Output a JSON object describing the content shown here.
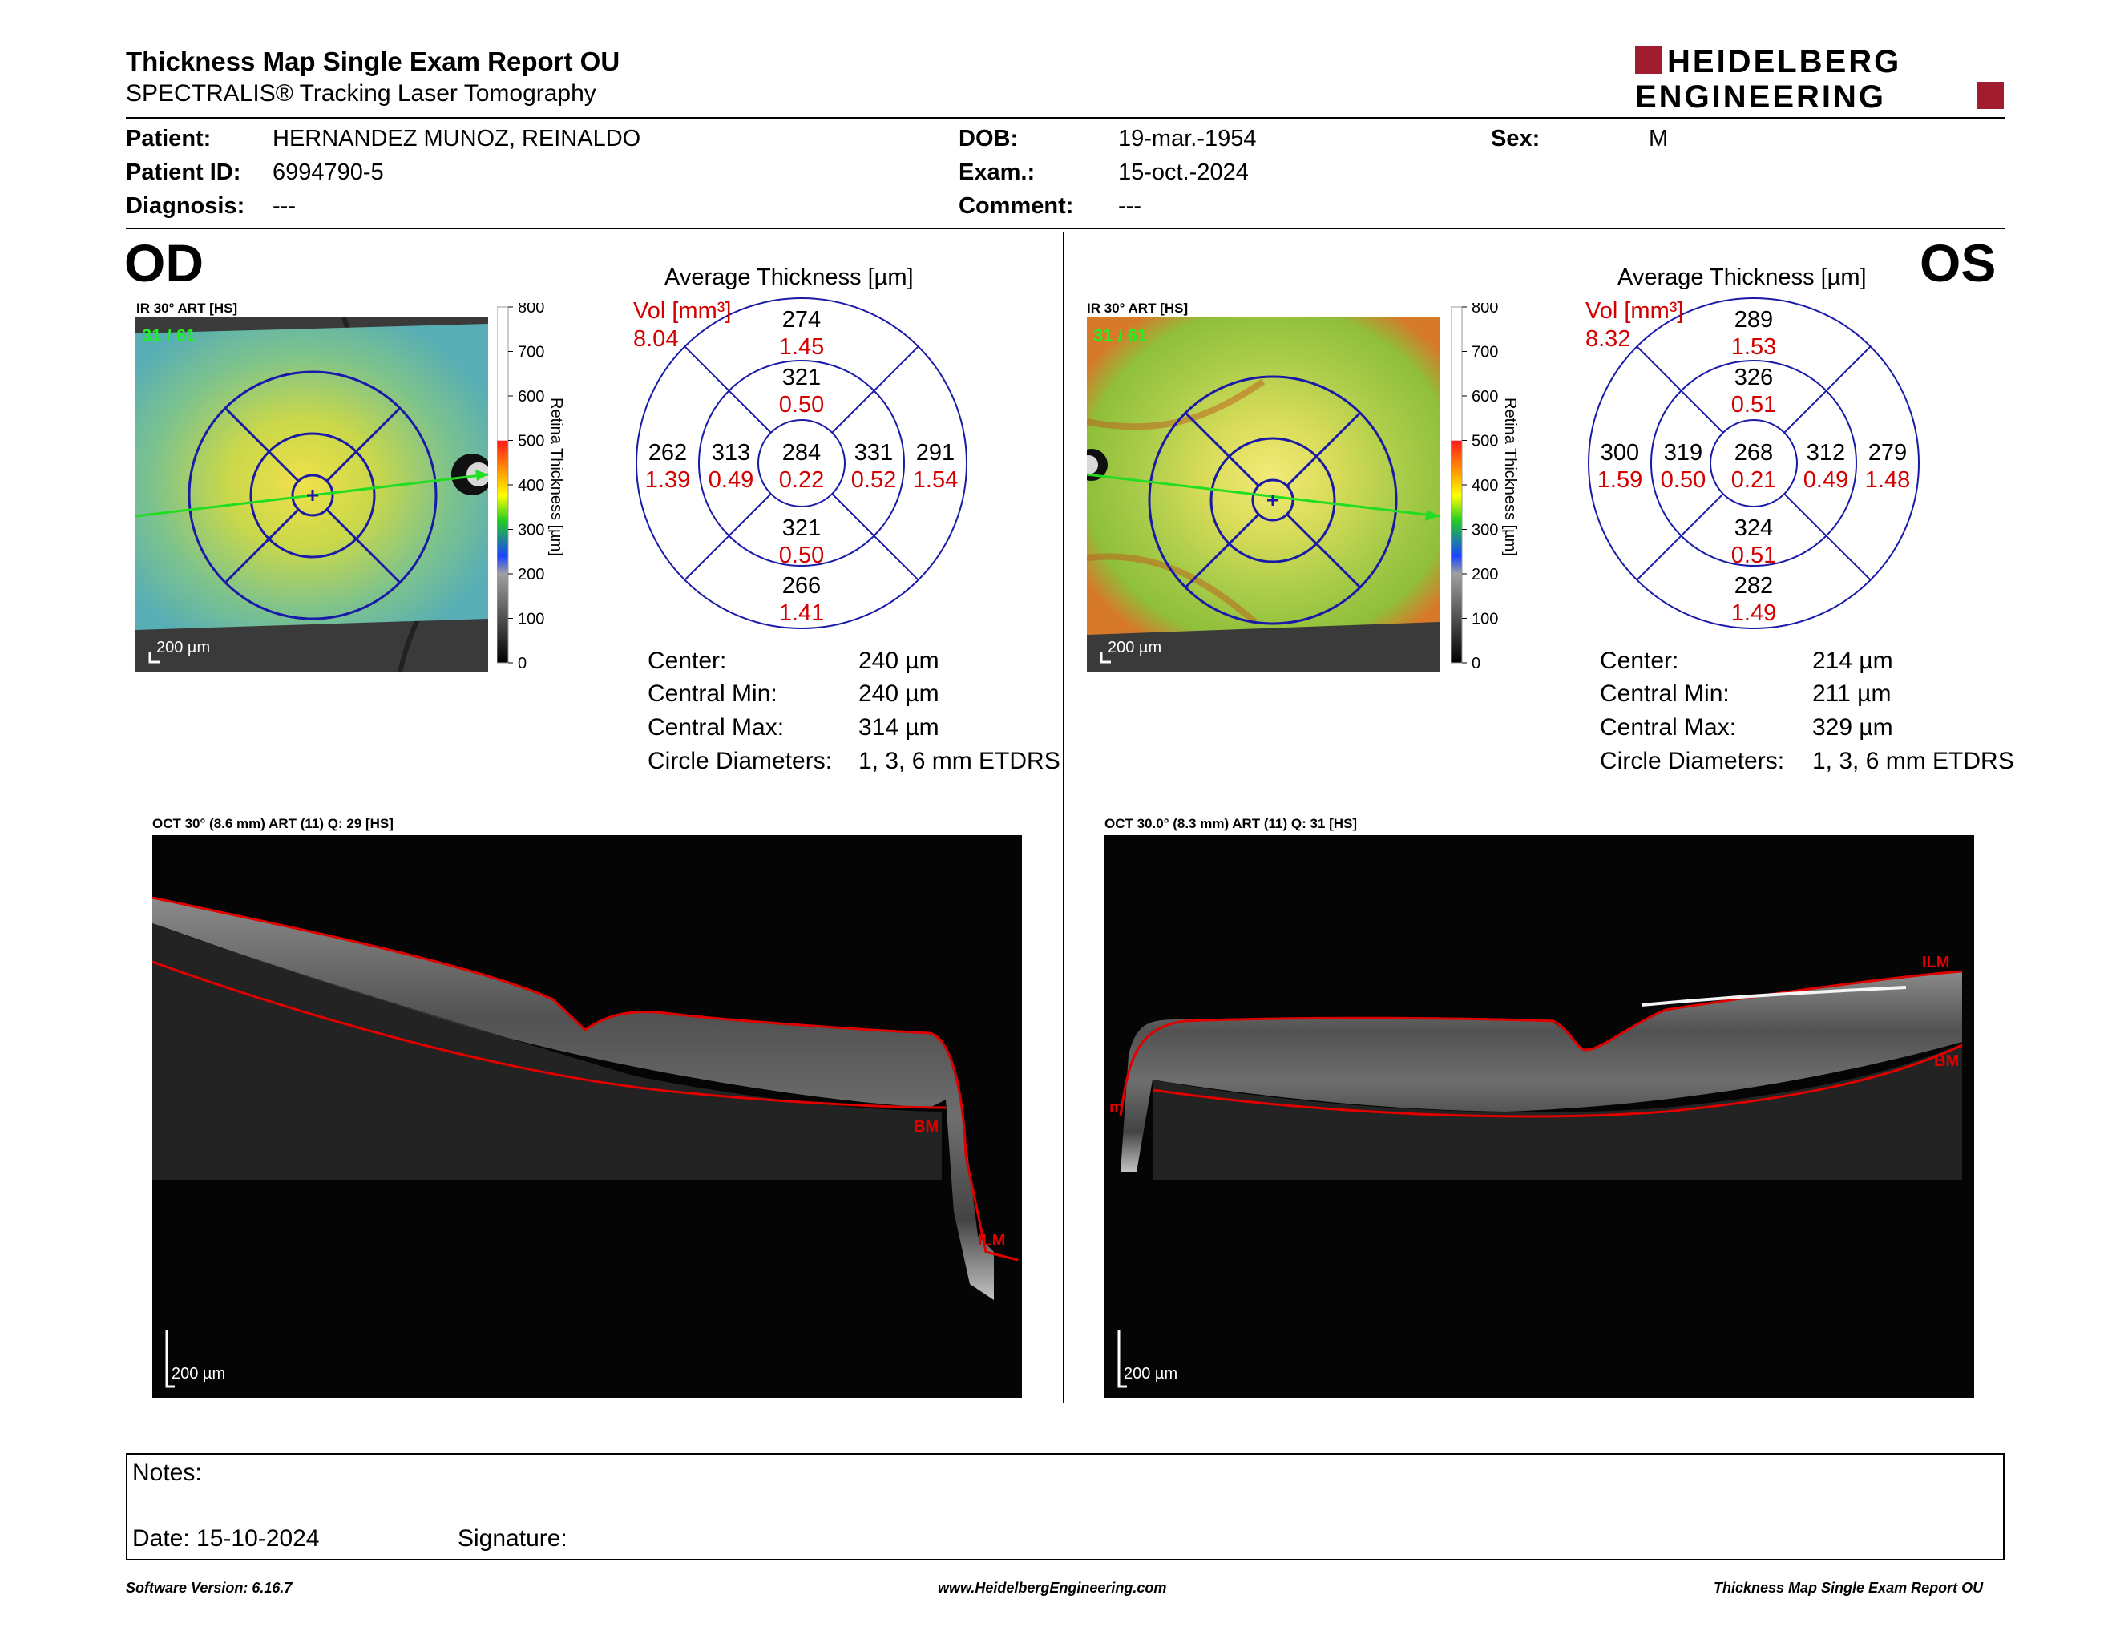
{
  "report": {
    "title": "Thickness Map Single Exam Report OU",
    "subtitle": "SPECTRALIS® Tracking Laser Tomography",
    "logo_line1": "HEIDELBERG",
    "logo_line2": "ENGINEERING"
  },
  "patient": {
    "patient_label": "Patient:",
    "patient_value": "HERNANDEZ MUNOZ, REINALDO",
    "id_label": "Patient ID:",
    "id_value": "6994790-5",
    "diagnosis_label": "Diagnosis:",
    "diagnosis_value": "---",
    "dob_label": "DOB:",
    "dob_value": "19-mar.-1954",
    "exam_label": "Exam.:",
    "exam_value": "15-oct.-2024",
    "comment_label": "Comment:",
    "comment_value": "---",
    "sex_label": "Sex:",
    "sex_value": "M"
  },
  "colors": {
    "accent_red": "#a01c2e",
    "ring_blue": "#1a1aa8",
    "vol_red": "#d40000",
    "scan_line_green": "#22dd22"
  },
  "od": {
    "eye_label": "OD",
    "ir_label": "IR 30° ART [HS]",
    "scan_counter": "31 / 61",
    "scale_label": "200 µm",
    "avg_title": "Average Thickness [µm]",
    "vol_label": "Vol [mm³]",
    "vol_total": "8.04",
    "sectors": {
      "center_t": "284",
      "center_v": "0.22",
      "inner_sup_t": "321",
      "inner_sup_v": "0.50",
      "inner_inf_t": "321",
      "inner_inf_v": "0.50",
      "inner_left_t": "313",
      "inner_left_v": "0.49",
      "inner_right_t": "331",
      "inner_right_v": "0.52",
      "outer_sup_t": "274",
      "outer_sup_v": "1.45",
      "outer_inf_t": "266",
      "outer_inf_v": "1.41",
      "outer_left_t": "262",
      "outer_left_v": "1.39",
      "outer_right_t": "291",
      "outer_right_v": "1.54"
    },
    "center_label": "Center:",
    "center_value": "240 µm",
    "cmin_label": "Central Min:",
    "cmin_value": "240 µm",
    "cmax_label": "Central Max:",
    "cmax_value": "314 µm",
    "diam_label": "Circle Diameters:",
    "diam_value": "1, 3, 6 mm ETDRS",
    "oct_label": "OCT 30° (8.6 mm) ART (11) Q: 29 [HS]",
    "oct_scale": "200 µm",
    "bm_label": "BM",
    "ilm_label": "ILM"
  },
  "os": {
    "eye_label": "OS",
    "ir_label": "IR 30° ART [HS]",
    "scan_counter": "31 / 61",
    "scale_label": "200 µm",
    "avg_title": "Average Thickness [µm]",
    "vol_label": "Vol [mm³]",
    "vol_total": "8.32",
    "sectors": {
      "center_t": "268",
      "center_v": "0.21",
      "inner_sup_t": "326",
      "inner_sup_v": "0.51",
      "inner_inf_t": "324",
      "inner_inf_v": "0.51",
      "inner_left_t": "319",
      "inner_left_v": "0.50",
      "inner_right_t": "312",
      "inner_right_v": "0.49",
      "outer_sup_t": "289",
      "outer_sup_v": "1.53",
      "outer_inf_t": "282",
      "outer_inf_v": "1.49",
      "outer_left_t": "300",
      "outer_left_v": "1.59",
      "outer_right_t": "279",
      "outer_right_v": "1.48"
    },
    "center_label": "Center:",
    "center_value": "214 µm",
    "cmin_label": "Central Min:",
    "cmin_value": "211 µm",
    "cmax_label": "Central Max:",
    "cmax_value": "329 µm",
    "diam_label": "Circle Diameters:",
    "diam_value": "1, 3, 6 mm ETDRS",
    "oct_label": "OCT 30.0° (8.3 mm) ART (11) Q: 31 [HS]",
    "oct_scale": "200 µm",
    "bm_label": "BM",
    "ilm_label": "ILM",
    "ilm_small": "m"
  },
  "colorbar": {
    "ticks": [
      "800",
      "700",
      "600",
      "500",
      "400",
      "300",
      "200",
      "100",
      "0"
    ],
    "label": "Retina Thickness [µm]"
  },
  "notes": {
    "notes_label": "Notes:",
    "date_label": "Date: 15-10-2024",
    "signature_label": "Signature:"
  },
  "footer": {
    "software": "Software Version: 6.16.7",
    "website": "www.HeidelbergEngineering.com",
    "report_name": "Thickness Map Single Exam Report OU"
  }
}
